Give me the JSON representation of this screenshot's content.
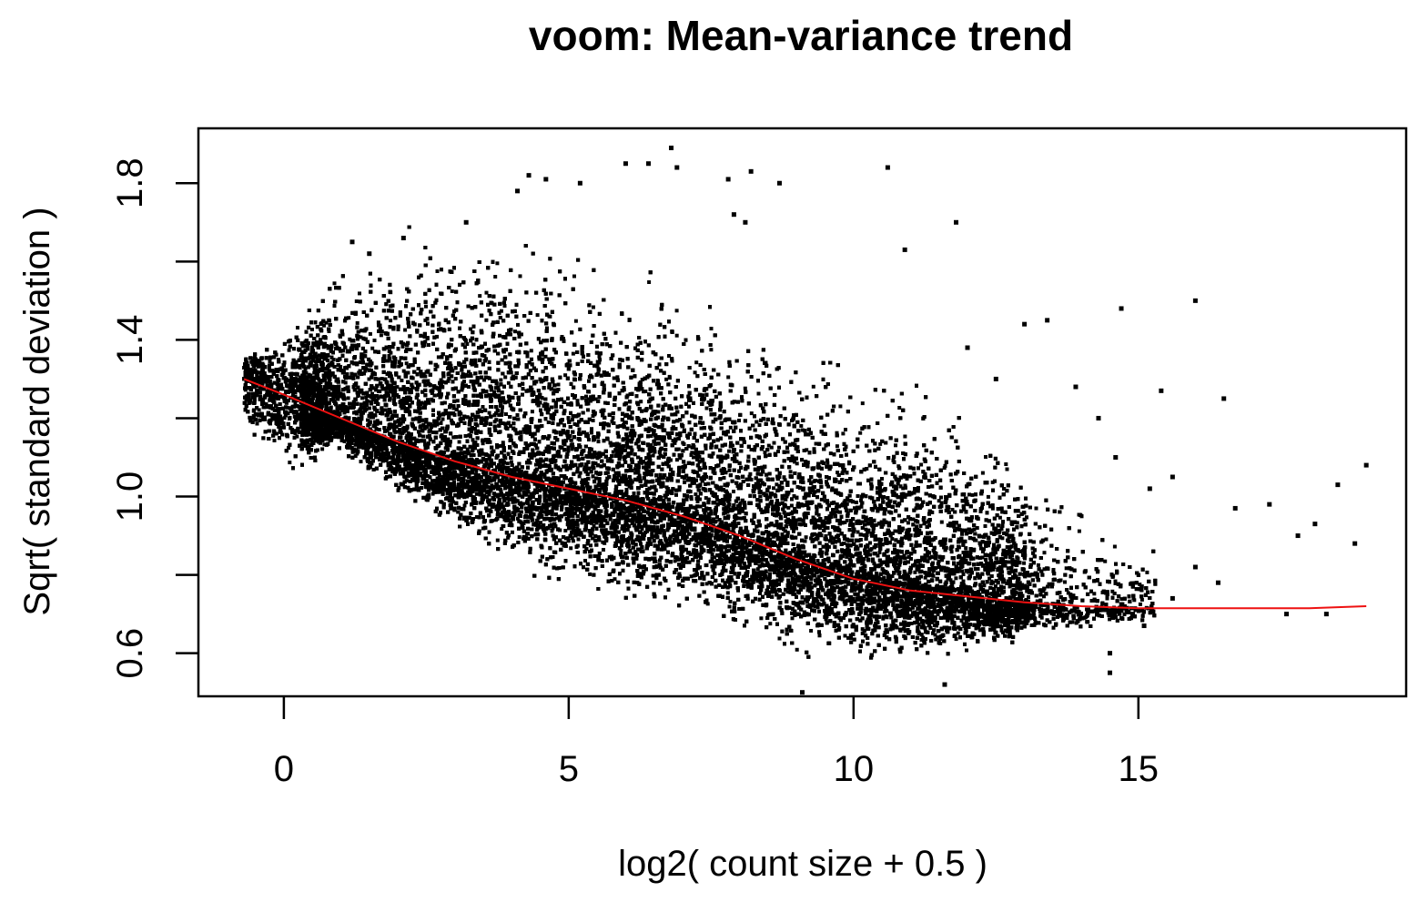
{
  "chart_data": {
    "type": "scatter",
    "title": "voom: Mean-variance trend",
    "xlabel": "log2( count size + 0.5 )",
    "ylabel": "Sqrt( standard deviation )",
    "xlim": [
      -1.5,
      19.7
    ],
    "ylim": [
      0.49,
      1.94
    ],
    "xticks": [
      0,
      5,
      10,
      15
    ],
    "yticks": [
      0.6,
      1.0,
      1.4,
      1.8
    ],
    "xtick_labels": [
      "0",
      "5",
      "10",
      "15"
    ],
    "ytick_labels": [
      "0.6",
      "1.0",
      "1.4",
      "1.8"
    ],
    "grid": false,
    "point_color": "#000000",
    "trend_color": "#ee1111",
    "trend": {
      "name": "lowess trend",
      "x": [
        -0.7,
        0,
        1,
        2,
        3,
        4,
        5,
        6,
        7,
        8,
        9,
        10,
        11,
        12,
        13,
        14,
        15,
        16,
        17,
        18,
        19
      ],
      "y": [
        1.3,
        1.26,
        1.2,
        1.14,
        1.09,
        1.05,
        1.02,
        0.99,
        0.95,
        0.9,
        0.84,
        0.79,
        0.76,
        0.745,
        0.73,
        0.72,
        0.715,
        0.715,
        0.715,
        0.715,
        0.72
      ]
    },
    "scatter_envelope": {
      "x": [
        -0.7,
        0,
        1,
        2,
        3,
        4,
        5,
        6,
        7,
        8,
        9,
        10,
        11,
        12,
        13,
        14,
        15
      ],
      "y_low": [
        1.15,
        1.05,
        1.1,
        0.98,
        0.88,
        0.8,
        0.76,
        0.71,
        0.68,
        0.64,
        0.58,
        0.55,
        0.55,
        0.58,
        0.62,
        0.65,
        0.68
      ],
      "y_high": [
        1.37,
        1.44,
        1.6,
        1.7,
        1.74,
        1.72,
        1.68,
        1.62,
        1.56,
        1.5,
        1.45,
        1.38,
        1.32,
        1.25,
        1.12,
        1.0,
        0.9
      ]
    },
    "outliers": [
      {
        "x": 4.3,
        "y": 1.82
      },
      {
        "x": 4.6,
        "y": 1.81
      },
      {
        "x": 5.2,
        "y": 1.8
      },
      {
        "x": 6.0,
        "y": 1.85
      },
      {
        "x": 6.4,
        "y": 1.85
      },
      {
        "x": 6.8,
        "y": 1.89
      },
      {
        "x": 6.9,
        "y": 1.84
      },
      {
        "x": 7.8,
        "y": 1.81
      },
      {
        "x": 8.2,
        "y": 1.83
      },
      {
        "x": 8.7,
        "y": 1.8
      },
      {
        "x": 10.6,
        "y": 1.84
      },
      {
        "x": 7.9,
        "y": 1.72
      },
      {
        "x": 8.1,
        "y": 1.7
      },
      {
        "x": 11.8,
        "y": 1.7
      },
      {
        "x": 10.9,
        "y": 1.63
      },
      {
        "x": 14.7,
        "y": 1.48
      },
      {
        "x": 16.0,
        "y": 1.5
      },
      {
        "x": 16.5,
        "y": 1.25
      },
      {
        "x": 15.4,
        "y": 1.27
      },
      {
        "x": 17.3,
        "y": 0.98
      },
      {
        "x": 17.8,
        "y": 0.9
      },
      {
        "x": 18.1,
        "y": 0.93
      },
      {
        "x": 18.5,
        "y": 1.03
      },
      {
        "x": 18.8,
        "y": 0.88
      },
      {
        "x": 19.0,
        "y": 1.08
      },
      {
        "x": 17.6,
        "y": 0.7
      },
      {
        "x": 18.3,
        "y": 0.7
      },
      {
        "x": 16.4,
        "y": 0.78
      },
      {
        "x": 16.7,
        "y": 0.97
      },
      {
        "x": 16.0,
        "y": 0.82
      },
      {
        "x": 15.6,
        "y": 1.05
      },
      {
        "x": 15.2,
        "y": 1.02
      },
      {
        "x": 14.6,
        "y": 1.1
      },
      {
        "x": 14.3,
        "y": 1.2
      },
      {
        "x": 13.9,
        "y": 1.28
      },
      {
        "x": 13.4,
        "y": 1.45
      },
      {
        "x": 13.0,
        "y": 1.44
      },
      {
        "x": 12.5,
        "y": 1.3
      },
      {
        "x": 12.0,
        "y": 1.38
      },
      {
        "x": 14.5,
        "y": 0.55
      },
      {
        "x": 14.5,
        "y": 0.6
      },
      {
        "x": 14.9,
        "y": 0.7
      },
      {
        "x": 15.1,
        "y": 0.67
      },
      {
        "x": 15.6,
        "y": 0.74
      },
      {
        "x": 9.1,
        "y": 0.5
      },
      {
        "x": 11.6,
        "y": 0.52
      },
      {
        "x": 2.1,
        "y": 1.66
      },
      {
        "x": 1.5,
        "y": 1.62
      },
      {
        "x": 1.2,
        "y": 1.65
      },
      {
        "x": 3.2,
        "y": 1.7
      },
      {
        "x": 4.1,
        "y": 1.78
      }
    ]
  }
}
